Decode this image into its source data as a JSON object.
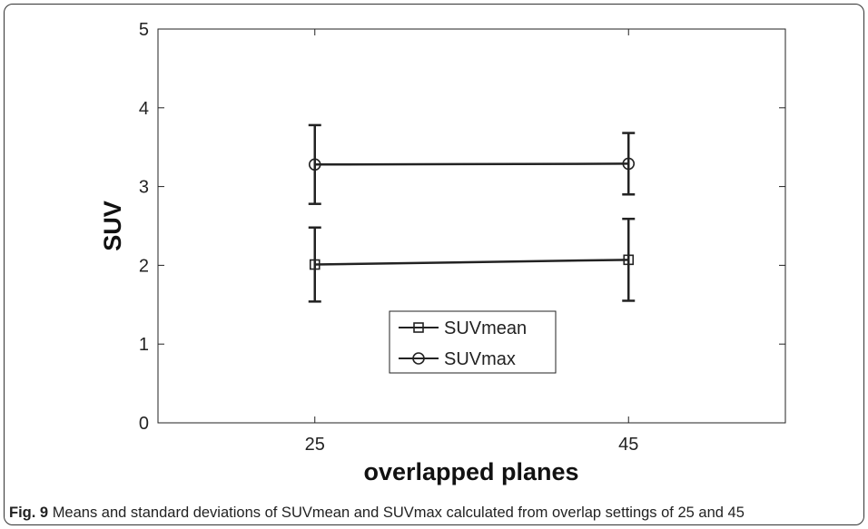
{
  "chart_data": {
    "type": "line",
    "x": [
      25,
      45
    ],
    "xlim": [
      15,
      55
    ],
    "ylim": [
      0,
      5
    ],
    "xticks": [
      "25",
      "45"
    ],
    "yticks": [
      "0",
      "1",
      "2",
      "3",
      "4",
      "5"
    ],
    "xlabel": "overlapped planes",
    "ylabel": "SUV",
    "grid": false,
    "legend_position": "bottom-center",
    "series": [
      {
        "name": "SUVmean",
        "marker": "square",
        "values": [
          2.01,
          2.07
        ],
        "error": [
          0.47,
          0.52
        ]
      },
      {
        "name": "SUVmax",
        "marker": "circle",
        "values": [
          3.28,
          3.29
        ],
        "error": [
          0.5,
          0.39
        ]
      }
    ],
    "line_color": "#222222"
  },
  "caption": {
    "label": "Fig. 9",
    "text": "Means and standard deviations of SUVmean and SUVmax calculated from overlap settings of 25 and 45"
  }
}
